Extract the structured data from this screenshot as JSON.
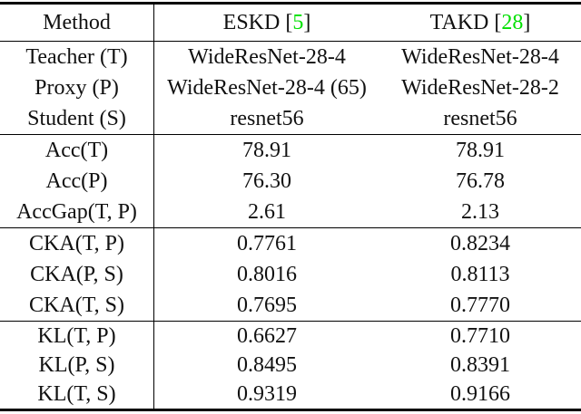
{
  "meta": {
    "background_color": "#ffffff",
    "text_color": "#111111",
    "citation_color": "#00e000",
    "rule_color": "#000000"
  },
  "table": {
    "header": {
      "method_label": "Method",
      "columns": [
        {
          "prefix": "ESKD [",
          "cite": "5",
          "suffix": "]"
        },
        {
          "prefix": "TAKD [",
          "cite": "28",
          "suffix": "]"
        }
      ]
    },
    "sections": [
      {
        "name": "models",
        "rows": [
          {
            "label": "Teacher (T)",
            "eskd": "WideResNet-28-4",
            "takd": "WideResNet-28-4"
          },
          {
            "label": "Proxy (P)",
            "eskd": "WideResNet-28-4 (65)",
            "takd": "WideResNet-28-2"
          },
          {
            "label": "Student (S)",
            "eskd": "resnet56",
            "takd": "resnet56"
          }
        ]
      },
      {
        "name": "accuracy",
        "rows": [
          {
            "label": "Acc(T)",
            "eskd": "78.91",
            "takd": "78.91"
          },
          {
            "label": "Acc(P)",
            "eskd": "76.30",
            "takd": "76.78"
          },
          {
            "label": "AccGap(T, P)",
            "eskd": "2.61",
            "takd": "2.13"
          }
        ]
      },
      {
        "name": "cka",
        "rows": [
          {
            "label": "CKA(T, P)",
            "eskd": "0.7761",
            "takd": "0.8234"
          },
          {
            "label": "CKA(P, S)",
            "eskd": "0.8016",
            "takd": "0.8113"
          },
          {
            "label": "CKA(T, S)",
            "eskd": "0.7695",
            "takd": "0.7770"
          }
        ]
      },
      {
        "name": "kl",
        "rows": [
          {
            "label": "KL(T, P)",
            "eskd": "0.6627",
            "takd": "0.7710"
          },
          {
            "label": "KL(P, S)",
            "eskd": "0.8495",
            "takd": "0.8391"
          },
          {
            "label": "KL(T, S)",
            "eskd": "0.9319",
            "takd": "0.9166"
          }
        ]
      }
    ]
  }
}
